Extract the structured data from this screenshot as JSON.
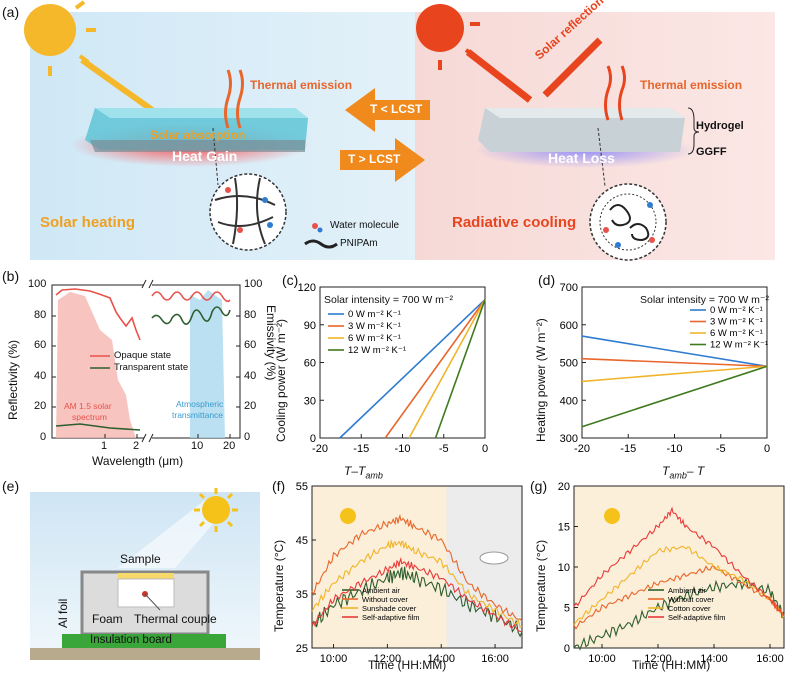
{
  "panel_a": {
    "label": "(a)",
    "left": {
      "thermal_emission": "Thermal emission",
      "solar_absorption": "Solar absorption",
      "heat_gain": "Heat Gain",
      "title": "Solar heating"
    },
    "right": {
      "solar_reflection": "Solar reflection",
      "thermal_emission": "Thermal emission",
      "heat_loss": "Heat Loss",
      "title": "Radiative cooling",
      "hydrogel": "Hydrogel",
      "ggff": "GGFF"
    },
    "arrow_top": "T < LCST",
    "arrow_bottom": "T > LCST",
    "legend": {
      "water": "Water molecule",
      "pnipam": "PNIPAm"
    }
  },
  "panel_b": {
    "label": "(b)",
    "ylabel_left": "Reflectivity (%)",
    "ylabel_right": "Emissivity (%)",
    "xlabel": "Wavelength (μm)",
    "yticks": [
      "0",
      "20",
      "40",
      "60",
      "80",
      "100"
    ],
    "xticks": [
      "1",
      "2",
      "10",
      "20"
    ],
    "legend": [
      "Opaque state",
      "Transparent state"
    ],
    "annotations": [
      "AM 1.5 solar",
      "spectrum",
      "Atmospheric",
      "transmittance"
    ],
    "colors": {
      "opaque": "#e8524a",
      "transparent": "#2e5e2e",
      "solar": "#f6b5b0",
      "atm": "#a9d8ee"
    }
  },
  "chart_data": [
    {
      "id": "c",
      "label": "(c)",
      "type": "line",
      "title": "Solar intensity = 700 W m⁻²",
      "xlabel": "T–T",
      "xlabel_sub": "amb",
      "ylabel": "Cooling power (W m⁻²)",
      "xlim": [
        -20,
        0
      ],
      "ylim": [
        0,
        120
      ],
      "xticks": [
        "-20",
        "-15",
        "-10",
        "-5",
        "0"
      ],
      "yticks": [
        "0",
        "30",
        "60",
        "90",
        "120"
      ],
      "series": [
        {
          "name": "0 W m⁻² K⁻¹",
          "color": "#2e7bd1",
          "x": [
            -17.6,
            0
          ],
          "y": [
            0,
            110
          ]
        },
        {
          "name": "3 W m⁻² K⁻¹",
          "color": "#e8662b",
          "x": [
            -12.1,
            0
          ],
          "y": [
            0,
            110
          ]
        },
        {
          "name": "6 W m⁻² K⁻¹",
          "color": "#f0b429",
          "x": [
            -9.2,
            0
          ],
          "y": [
            0,
            110
          ]
        },
        {
          "name": "12 W m⁻² K⁻¹",
          "color": "#3f7a1e",
          "x": [
            -6.0,
            0
          ],
          "y": [
            0,
            110
          ]
        }
      ]
    },
    {
      "id": "d",
      "label": "(d)",
      "type": "line",
      "title": "Solar intensity = 700 W m⁻²",
      "xlabel": "T",
      "xlabel_sub": "amb",
      "xlabel_tail": "– T",
      "ylabel": "Heating power (W m⁻²)",
      "xlim": [
        -20,
        0
      ],
      "ylim": [
        300,
        700
      ],
      "xticks": [
        "-20",
        "-15",
        "-10",
        "-5",
        "0"
      ],
      "yticks": [
        "300",
        "400",
        "500",
        "600",
        "700"
      ],
      "series": [
        {
          "name": "0 W m⁻² K⁻¹",
          "color": "#2e7bd1",
          "x": [
            -20,
            0
          ],
          "y": [
            570,
            490
          ]
        },
        {
          "name": "3 W m⁻² K⁻¹",
          "color": "#e8662b",
          "x": [
            -20,
            0
          ],
          "y": [
            510,
            490
          ]
        },
        {
          "name": "6 W m⁻² K⁻¹",
          "color": "#f0b429",
          "x": [
            -20,
            0
          ],
          "y": [
            450,
            490
          ]
        },
        {
          "name": "12 W m⁻² K⁻¹",
          "color": "#3f7a1e",
          "x": [
            -20,
            0
          ],
          "y": [
            330,
            490
          ]
        }
      ]
    },
    {
      "id": "f",
      "label": "(f)",
      "type": "line",
      "xlabel": "Time (HH:MM)",
      "ylabel": "Temperature (°C)",
      "xlim": [
        9.2,
        17
      ],
      "ylim": [
        25,
        55
      ],
      "xticks": [
        "10:00",
        "12:00",
        "14:00",
        "16:00"
      ],
      "yticks": [
        "25",
        "35",
        "45",
        "55"
      ],
      "series": [
        {
          "name": "Ambient air",
          "color": "#2e5e2e",
          "x": [
            9.2,
            10,
            11,
            12,
            12.5,
            13,
            14,
            15,
            16,
            17
          ],
          "y": [
            29,
            33,
            35.5,
            38,
            39,
            38,
            36,
            33,
            31,
            28
          ]
        },
        {
          "name": "Without cover",
          "color": "#e8662b",
          "x": [
            9.2,
            10,
            11,
            12,
            12.5,
            13,
            14,
            15,
            16,
            17
          ],
          "y": [
            35,
            42,
            46,
            48,
            49,
            47.5,
            45,
            37,
            33,
            30
          ]
        },
        {
          "name": "Sunshade cover",
          "color": "#f0b429",
          "x": [
            9.2,
            10,
            11,
            12,
            12.5,
            13,
            14,
            15,
            16,
            17
          ],
          "y": [
            32,
            37,
            41,
            44,
            44.5,
            43,
            41,
            35,
            32,
            29
          ]
        },
        {
          "name": "Self-adaptive film",
          "color": "#e83a3a",
          "x": [
            9.2,
            10,
            11,
            12,
            12.5,
            13,
            14,
            15,
            16,
            17
          ],
          "y": [
            29,
            34,
            37,
            39.5,
            41,
            40,
            38,
            34,
            31,
            28
          ]
        }
      ]
    },
    {
      "id": "g",
      "label": "(g)",
      "type": "line",
      "xlabel": "Time (HH:MM)",
      "ylabel": "Temperature (°C)",
      "xlim": [
        9,
        16.5
      ],
      "ylim": [
        0,
        20
      ],
      "xticks": [
        "10:00",
        "12:00",
        "14:00",
        "16:00"
      ],
      "yticks": [
        "0",
        "5",
        "10",
        "15",
        "20"
      ],
      "series": [
        {
          "name": "Ambient air",
          "color": "#2e5e2e",
          "x": [
            9,
            10,
            11,
            12,
            13,
            14,
            15,
            16,
            16.5
          ],
          "y": [
            0,
            1.5,
            3,
            5,
            6.5,
            7.5,
            8,
            7,
            4
          ]
        },
        {
          "name": "Without cover",
          "color": "#e8662b",
          "x": [
            9,
            10,
            11,
            12,
            13,
            14,
            15,
            16,
            16.5
          ],
          "y": [
            2.5,
            5,
            6.5,
            8,
            9,
            10,
            8,
            6,
            4
          ]
        },
        {
          "name": "Cotton cover",
          "color": "#f0b429",
          "x": [
            9,
            10,
            11,
            12,
            13,
            14,
            15,
            16,
            16.5
          ],
          "y": [
            3,
            6,
            9,
            12,
            12.5,
            10,
            8.5,
            6,
            4
          ]
        },
        {
          "name": "Self-adaptive film",
          "color": "#e83a3a",
          "x": [
            9,
            10,
            11,
            12,
            12.5,
            13,
            14,
            15,
            16,
            16.5
          ],
          "y": [
            5,
            9,
            12,
            15,
            17,
            15,
            12.5,
            9,
            6,
            4
          ]
        }
      ]
    }
  ],
  "panel_e": {
    "label": "(e)",
    "sample": "Sample",
    "al_foil": "Al foil",
    "foam": "Foam",
    "thermocouple": "Thermal couple",
    "board": "Insulation board"
  }
}
